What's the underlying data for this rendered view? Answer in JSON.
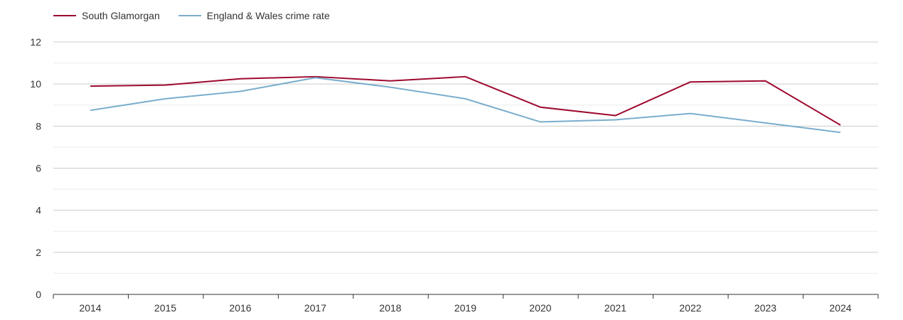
{
  "chart_data": {
    "type": "line",
    "title": "",
    "xlabel": "",
    "ylabel": "",
    "categories": [
      "2014",
      "2015",
      "2016",
      "2017",
      "2018",
      "2019",
      "2020",
      "2021",
      "2022",
      "2023",
      "2024"
    ],
    "ylim": [
      0,
      12
    ],
    "yticks": [
      0,
      2,
      4,
      6,
      8,
      10,
      12
    ],
    "grid": true,
    "legend_position": "top-left",
    "series": [
      {
        "name": "South Glamorgan",
        "color": "#9e0a2e",
        "values": [
          9.9,
          9.95,
          10.25,
          10.35,
          10.15,
          10.35,
          8.9,
          8.5,
          10.1,
          10.15,
          8.05
        ]
      },
      {
        "name": "England & Wales crime rate",
        "color": "#7aadcc",
        "values": [
          8.75,
          9.3,
          9.65,
          10.3,
          9.85,
          9.3,
          8.2,
          8.3,
          8.6,
          8.15,
          7.7
        ]
      }
    ]
  }
}
